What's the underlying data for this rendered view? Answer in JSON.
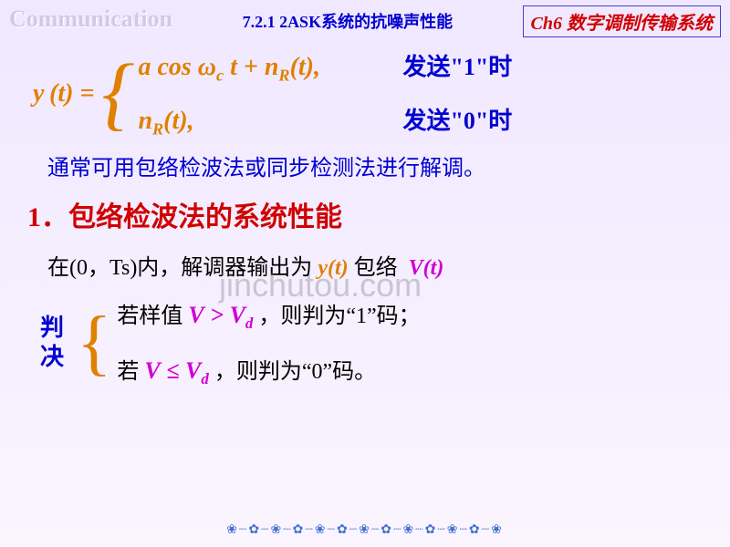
{
  "header": {
    "left": "Communication",
    "mid": "7.2.1 2ASK系统的抗噪声性能",
    "right": "Ch6 数字调制传输系统"
  },
  "eq1": {
    "lhs": "y (t) =",
    "case1_math": "a cos ω_c t + n_R(t),",
    "case1_cond": "发送\"1\"时",
    "case2_math": "n_R(t),",
    "case2_cond": "发送\"0\"时"
  },
  "p1": "通常可用包络检波法或同步检测法进行解调。",
  "h1": "1．包络检波法的系统性能",
  "p2": {
    "a": "在(0，Ts)内，解调器输出为",
    "b": "y(t)",
    "c": "包络",
    "d": "V(t)"
  },
  "judge": {
    "label": "判决",
    "row1_a": "若样值 ",
    "row1_m": "V > V_d",
    "row1_b": "，则判为“1”码；",
    "row2_a": "若   ",
    "row2_m": "V ≤ V_d",
    "row2_b": " ，则判为“0”码。"
  },
  "watermark": "jinchutou.com",
  "footer": "❀┈✿┈❀┈✿┈❀┈✿┈❀┈✿┈❀┈✿┈❀┈✿┈❀"
}
